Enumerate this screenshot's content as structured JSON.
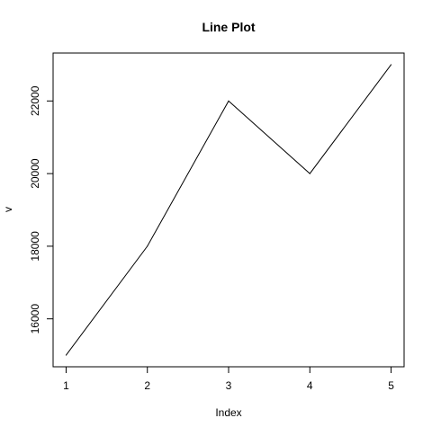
{
  "chart_data": {
    "type": "line",
    "title": "Line Plot",
    "xlabel": "Index",
    "ylabel": "v",
    "x": [
      1,
      2,
      3,
      4,
      5
    ],
    "values": [
      15000,
      18000,
      22000,
      20000,
      23000
    ],
    "xlim": [
      0.84,
      5.16
    ],
    "ylim": [
      14680,
      23320
    ],
    "x_ticks": [
      1,
      2,
      3,
      4,
      5
    ],
    "y_ticks": [
      16000,
      18000,
      20000,
      22000
    ],
    "grid": false,
    "line_color": "#000000"
  }
}
